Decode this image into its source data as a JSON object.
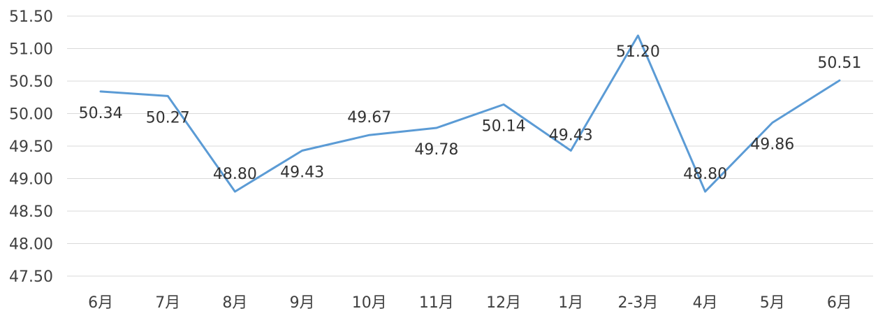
{
  "chart_data": {
    "type": "line",
    "categories": [
      "6月",
      "7月",
      "8月",
      "9月",
      "10月",
      "11月",
      "12月",
      "1月",
      "2-3月",
      "4月",
      "5月",
      "6月"
    ],
    "series": [
      {
        "values": [
          50.34,
          50.27,
          48.8,
          49.43,
          49.67,
          49.78,
          50.14,
          49.43,
          51.2,
          48.8,
          49.86,
          50.51
        ],
        "labels": [
          "50.34",
          "50.27",
          "48.80",
          "49.43",
          "49.67",
          "49.78",
          "50.14",
          "49.43",
          "51.20",
          "48.80",
          "49.86",
          "50.51"
        ],
        "color": "#5B9BD5"
      }
    ],
    "ylim": [
      47.5,
      51.5
    ],
    "yticks": [
      "47.50",
      "48.00",
      "48.50",
      "49.00",
      "49.50",
      "50.00",
      "50.50",
      "51.00",
      "51.50"
    ],
    "grid": true,
    "gridColor": "#D9D9D9",
    "title": "",
    "xlabel": "",
    "ylabel": ""
  }
}
